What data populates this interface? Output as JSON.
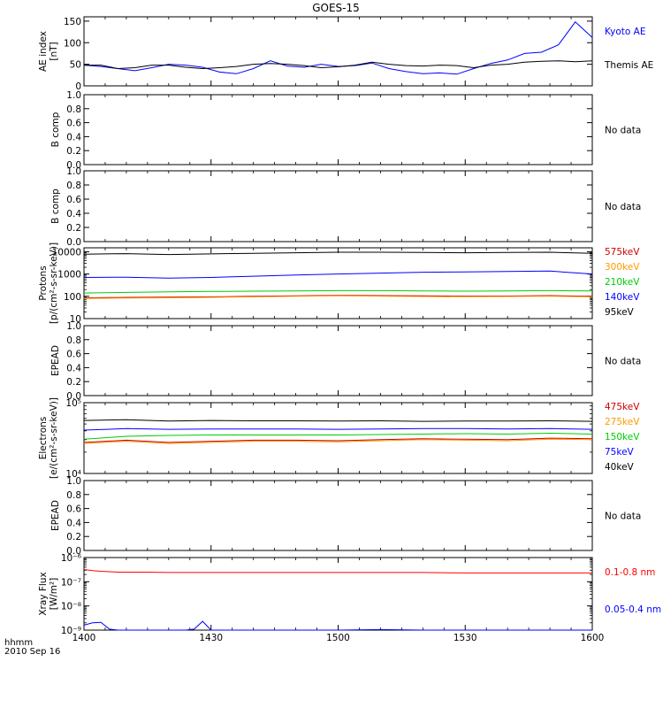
{
  "title": "GOES-15",
  "time_axis": {
    "ticks": [
      "1400",
      "1430",
      "1500",
      "1530",
      "1600"
    ],
    "corner_label": "hhmm",
    "date_label": "2010 Sep 16"
  },
  "chart_data": [
    {
      "id": "ae",
      "type": "line",
      "ylabel": "AE index\n[nT]",
      "ylim": [
        0,
        160
      ],
      "yticks": [
        0,
        50,
        100,
        150
      ],
      "ytick_labels": [
        "0",
        "50",
        "100",
        "150"
      ],
      "log": false,
      "x": [
        1400,
        1404,
        1408,
        1412,
        1416,
        1420,
        1424,
        1428,
        1432,
        1436,
        1440,
        1444,
        1448,
        1452,
        1456,
        1500,
        1504,
        1508,
        1512,
        1516,
        1520,
        1524,
        1528,
        1532,
        1536,
        1540,
        1544,
        1548,
        1552,
        1556,
        1600
      ],
      "series": [
        {
          "name": "Kyoto AE",
          "color": "#0000ff",
          "values": [
            48,
            45,
            40,
            35,
            42,
            50,
            48,
            43,
            32,
            28,
            40,
            58,
            46,
            43,
            50,
            45,
            47,
            53,
            40,
            33,
            28,
            30,
            27,
            40,
            52,
            60,
            75,
            78,
            95,
            148,
            112
          ]
        },
        {
          "name": "Themis AE",
          "color": "#000000",
          "values": [
            48,
            48,
            40,
            42,
            48,
            48,
            43,
            40,
            42,
            45,
            50,
            52,
            50,
            47,
            42,
            44,
            48,
            55,
            50,
            47,
            46,
            48,
            47,
            42,
            48,
            50,
            55,
            57,
            58,
            56,
            58
          ]
        }
      ],
      "legend": [
        {
          "text": "Kyoto AE",
          "color": "#0000ff"
        },
        {
          "text": "Themis AE",
          "color": "#000000"
        }
      ]
    },
    {
      "id": "bcomp1",
      "type": "line",
      "ylabel": "B comp",
      "ylim": [
        0,
        1
      ],
      "yticks": [
        0,
        0.2,
        0.4,
        0.6,
        0.8,
        1.0
      ],
      "ytick_labels": [
        "0.0",
        "0.2",
        "0.4",
        "0.6",
        "0.8",
        "1.0"
      ],
      "log": false,
      "series": [],
      "legend": [
        {
          "text": "No data",
          "color": "#000000"
        }
      ]
    },
    {
      "id": "bcomp2",
      "type": "line",
      "ylabel": "B comp",
      "ylim": [
        0,
        1
      ],
      "yticks": [
        0,
        0.2,
        0.4,
        0.6,
        0.8,
        1.0
      ],
      "ytick_labels": [
        "0.0",
        "0.2",
        "0.4",
        "0.6",
        "0.8",
        "1.0"
      ],
      "log": false,
      "series": [],
      "legend": [
        {
          "text": "No data",
          "color": "#000000"
        }
      ]
    },
    {
      "id": "protons",
      "type": "line",
      "ylabel": "Protons\n[p/(cm²-s-sr-keV)]",
      "ylim": [
        10,
        15000
      ],
      "yticks": [
        10,
        100,
        1000,
        10000
      ],
      "ytick_labels": [
        "10",
        "100",
        "1000",
        "10000"
      ],
      "log": true,
      "x": [
        1400,
        1410,
        1420,
        1430,
        1440,
        1450,
        1500,
        1510,
        1520,
        1530,
        1540,
        1550,
        1600
      ],
      "series": [
        {
          "name": "575keV",
          "color": "#cc0000",
          "values": [
            85,
            90,
            92,
            95,
            100,
            105,
            110,
            108,
            105,
            102,
            103,
            108,
            100
          ]
        },
        {
          "name": "300keV",
          "color": "#ff9900",
          "values": [
            80,
            84,
            86,
            90,
            95,
            100,
            105,
            102,
            98,
            96,
            98,
            102,
            95
          ]
        },
        {
          "name": "210keV",
          "color": "#00cc00",
          "values": [
            140,
            150,
            160,
            165,
            170,
            175,
            180,
            180,
            175,
            170,
            175,
            180,
            175
          ]
        },
        {
          "name": "140keV",
          "color": "#0000ff",
          "values": [
            700,
            720,
            650,
            700,
            800,
            900,
            1000,
            1100,
            1200,
            1250,
            1300,
            1350,
            1000
          ]
        },
        {
          "name": "95keV",
          "color": "#000000",
          "values": [
            7800,
            8200,
            7500,
            8000,
            8500,
            9000,
            9500,
            9500,
            9200,
            9000,
            9300,
            9500,
            8500
          ]
        }
      ],
      "legend": [
        {
          "text": "575keV",
          "color": "#cc0000"
        },
        {
          "text": "300keV",
          "color": "#ff9900"
        },
        {
          "text": "210keV",
          "color": "#00cc00"
        },
        {
          "text": "140keV",
          "color": "#0000ff"
        },
        {
          "text": "95keV",
          "color": "#000000"
        }
      ]
    },
    {
      "id": "epead1",
      "type": "line",
      "ylabel": "EPEAD",
      "ylim": [
        0,
        1
      ],
      "yticks": [
        0,
        0.2,
        0.4,
        0.6,
        0.8,
        1.0
      ],
      "ytick_labels": [
        "0.0",
        "0.2",
        "0.4",
        "0.6",
        "0.8",
        "1.0"
      ],
      "log": false,
      "series": [],
      "legend": [
        {
          "text": "No data",
          "color": "#000000"
        }
      ]
    },
    {
      "id": "electrons",
      "type": "line",
      "ylabel": "Electrons\n[e/(cm²-s-sr-keV)]",
      "ylim": [
        10000,
        100000
      ],
      "yticks": [
        10000,
        100000
      ],
      "ytick_labels": [
        "10⁴",
        "10⁵"
      ],
      "log": true,
      "x": [
        1400,
        1410,
        1420,
        1430,
        1440,
        1450,
        1500,
        1510,
        1520,
        1530,
        1540,
        1550,
        1600
      ],
      "series": [
        {
          "name": "475keV",
          "color": "#cc0000",
          "values": [
            27500,
            29500,
            27500,
            28500,
            29500,
            29500,
            29000,
            30000,
            31000,
            30500,
            30000,
            31500,
            31000
          ]
        },
        {
          "name": "275keV",
          "color": "#ff9900",
          "values": [
            26500,
            28500,
            26500,
            27500,
            28500,
            28500,
            28000,
            29000,
            30000,
            29500,
            29000,
            30500,
            30000
          ]
        },
        {
          "name": "150keV",
          "color": "#00cc00",
          "values": [
            30500,
            33500,
            34500,
            35000,
            35000,
            35000,
            35000,
            35500,
            36000,
            36500,
            36000,
            37000,
            36000
          ]
        },
        {
          "name": "75keV",
          "color": "#0000ff",
          "values": [
            41000,
            43000,
            42000,
            42500,
            42500,
            42500,
            42000,
            42500,
            43000,
            43000,
            42500,
            43000,
            42000
          ]
        },
        {
          "name": "40keV",
          "color": "#000000",
          "values": [
            56000,
            57500,
            55000,
            56000,
            55500,
            55500,
            55000,
            55500,
            54500,
            55000,
            55000,
            55500,
            54500
          ]
        }
      ],
      "legend": [
        {
          "text": "475keV",
          "color": "#cc0000"
        },
        {
          "text": "275keV",
          "color": "#ff9900"
        },
        {
          "text": "150keV",
          "color": "#00cc00"
        },
        {
          "text": "75keV",
          "color": "#0000ff"
        },
        {
          "text": "40keV",
          "color": "#000000"
        }
      ]
    },
    {
      "id": "epead2",
      "type": "line",
      "ylabel": "EPEAD",
      "ylim": [
        0,
        1
      ],
      "yticks": [
        0,
        0.2,
        0.4,
        0.6,
        0.8,
        1.0
      ],
      "ytick_labels": [
        "0.0",
        "0.2",
        "0.4",
        "0.6",
        "0.8",
        "1.0"
      ],
      "log": false,
      "series": [],
      "legend": [
        {
          "text": "No data",
          "color": "#000000"
        }
      ]
    },
    {
      "id": "xray",
      "type": "line",
      "ylabel": "Xray Flux\n[W/m²]",
      "ylim": [
        1e-09,
        1e-06
      ],
      "yticks": [
        1e-09,
        1e-08,
        1e-07,
        1e-06
      ],
      "ytick_labels": [
        "10⁻⁹",
        "10⁻⁸",
        "10⁻⁷",
        "10⁻⁶"
      ],
      "log": true,
      "x": [
        1400,
        1402,
        1404,
        1406,
        1408,
        1410,
        1415,
        1420,
        1424,
        1426,
        1428,
        1430,
        1440,
        1445,
        1450,
        1500,
        1510,
        1520,
        1530,
        1540,
        1550,
        1555,
        1600
      ],
      "series": [
        {
          "name": "0.1-0.8 nm",
          "color": "#ff0000",
          "values": [
            3.2e-07,
            2.9e-07,
            2.7e-07,
            2.6e-07,
            2.5e-07,
            2.5e-07,
            2.5e-07,
            2.4e-07,
            2.4e-07,
            2.4e-07,
            2.4e-07,
            2.4e-07,
            2.4e-07,
            2.4e-07,
            2.4e-07,
            2.4e-07,
            2.4e-07,
            2.4e-07,
            2.3e-07,
            2.3e-07,
            2.3e-07,
            2.3e-07,
            2.3e-07
          ]
        },
        {
          "name": "0.05-0.4 nm",
          "color": "#0000ff",
          "values": [
            1.6e-09,
            2e-09,
            2.1e-09,
            1.1e-09,
            1e-09,
            1e-09,
            1e-09,
            1e-09,
            1e-09,
            1.1e-09,
            2.3e-09,
            1e-09,
            1e-09,
            1e-09,
            1e-09,
            1e-09,
            1.05e-09,
            1e-09,
            1e-09,
            1e-09,
            1e-09,
            1e-09,
            1e-09
          ]
        }
      ],
      "legend": [
        {
          "text": "0.1-0.8 nm",
          "color": "#ff0000"
        },
        {
          "text": "0.05-0.4 nm",
          "color": "#0000ff"
        }
      ]
    }
  ]
}
